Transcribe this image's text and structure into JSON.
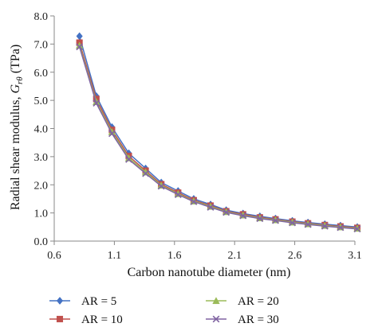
{
  "chart_data": {
    "type": "line",
    "xlabel": "Carbon nanotube diameter (nm)",
    "ylabel_prefix": "Radial shear modulus, ",
    "ylabel_symbol": "G",
    "ylabel_subscript": "rθ",
    "ylabel_unit": " (TPa)",
    "xlim": [
      0.6,
      3.1
    ],
    "ylim": [
      0.0,
      8.0
    ],
    "xticks": [
      "0.6",
      "1.1",
      "1.6",
      "2.1",
      "2.6",
      "3.1"
    ],
    "yticks": [
      "0.0",
      "1.0",
      "2.0",
      "3.0",
      "4.0",
      "5.0",
      "6.0",
      "7.0",
      "8.0"
    ],
    "x": [
      0.81,
      0.95,
      1.08,
      1.22,
      1.36,
      1.49,
      1.63,
      1.76,
      1.9,
      2.03,
      2.17,
      2.31,
      2.44,
      2.58,
      2.71,
      2.85,
      2.98,
      3.12
    ],
    "series": [
      {
        "name": "AR = 5",
        "color": "#4472C4",
        "marker": "diamond",
        "values": [
          7.28,
          5.15,
          4.05,
          3.12,
          2.58,
          2.08,
          1.78,
          1.5,
          1.3,
          1.1,
          0.98,
          0.88,
          0.8,
          0.72,
          0.66,
          0.6,
          0.55,
          0.5
        ]
      },
      {
        "name": "AR = 10",
        "color": "#C0504D",
        "marker": "square",
        "values": [
          7.05,
          5.05,
          3.95,
          3.02,
          2.5,
          2.02,
          1.72,
          1.45,
          1.26,
          1.06,
          0.95,
          0.84,
          0.77,
          0.69,
          0.63,
          0.57,
          0.52,
          0.47
        ]
      },
      {
        "name": "AR = 20",
        "color": "#9BBB59",
        "marker": "triangle",
        "values": [
          6.95,
          4.95,
          3.88,
          2.95,
          2.45,
          1.98,
          1.68,
          1.42,
          1.23,
          1.04,
          0.92,
          0.82,
          0.75,
          0.67,
          0.61,
          0.55,
          0.5,
          0.45
        ]
      },
      {
        "name": "AR = 30",
        "color": "#8064A2",
        "marker": "x",
        "values": [
          6.9,
          4.9,
          3.82,
          2.9,
          2.4,
          1.95,
          1.65,
          1.4,
          1.2,
          1.02,
          0.9,
          0.8,
          0.73,
          0.65,
          0.59,
          0.53,
          0.48,
          0.43
        ]
      }
    ],
    "grid": false,
    "legend_position": "bottom"
  }
}
